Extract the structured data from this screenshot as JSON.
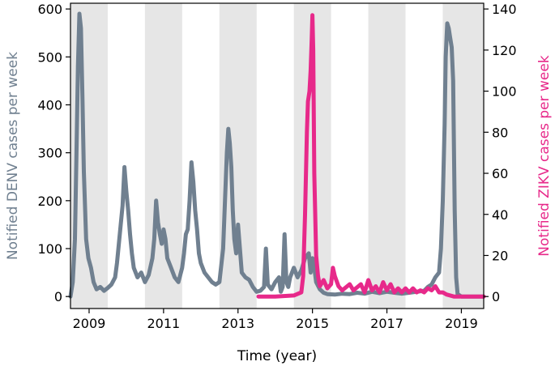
{
  "chart_data": {
    "type": "line",
    "xlabel": "Time (year)",
    "xlim": [
      2008.5,
      2019.6
    ],
    "x_ticks": [
      2009,
      2011,
      2013,
      2015,
      2017,
      2019
    ],
    "x_tick_labels": [
      "2009",
      "2011",
      "2013",
      "2015",
      "2017",
      "2019"
    ],
    "y_left": {
      "label": "Notified DENV cases per week",
      "lim": [
        -25,
        612
      ],
      "ticks": [
        0,
        100,
        200,
        300,
        400,
        500,
        600
      ],
      "tick_labels": [
        "0",
        "100",
        "200",
        "300",
        "400",
        "500",
        "600"
      ],
      "color": "#708090"
    },
    "y_right": {
      "label": "Notified ZIKV cases per week",
      "lim": [
        -5.83,
        142.8
      ],
      "ticks": [
        0,
        20,
        40,
        60,
        80,
        100,
        120,
        140
      ],
      "tick_labels": [
        "0",
        "20",
        "40",
        "60",
        "80",
        "100",
        "120",
        "140"
      ],
      "color": "#e7298a"
    },
    "shaded_bands": [
      [
        2008.5,
        2009.5
      ],
      [
        2010.5,
        2011.5
      ],
      [
        2012.5,
        2013.5
      ],
      [
        2014.5,
        2015.5
      ],
      [
        2016.5,
        2017.5
      ],
      [
        2018.5,
        2019.6
      ]
    ],
    "band_color": "#e6e6e6",
    "grid": false,
    "legend": "none",
    "series": [
      {
        "axis": "left",
        "color": "#708090",
        "points": [
          [
            2008.5,
            0
          ],
          [
            2008.56,
            30
          ],
          [
            2008.62,
            120
          ],
          [
            2008.66,
            300
          ],
          [
            2008.7,
            480
          ],
          [
            2008.74,
            590
          ],
          [
            2008.78,
            560
          ],
          [
            2008.82,
            420
          ],
          [
            2008.86,
            260
          ],
          [
            2008.92,
            120
          ],
          [
            2008.98,
            80
          ],
          [
            2009.05,
            60
          ],
          [
            2009.12,
            30
          ],
          [
            2009.2,
            15
          ],
          [
            2009.3,
            20
          ],
          [
            2009.4,
            12
          ],
          [
            2009.5,
            18
          ],
          [
            2009.6,
            25
          ],
          [
            2009.7,
            40
          ],
          [
            2009.75,
            70
          ],
          [
            2009.8,
            110
          ],
          [
            2009.85,
            150
          ],
          [
            2009.9,
            190
          ],
          [
            2009.95,
            270
          ],
          [
            2010.0,
            220
          ],
          [
            2010.05,
            180
          ],
          [
            2010.1,
            130
          ],
          [
            2010.15,
            90
          ],
          [
            2010.2,
            60
          ],
          [
            2010.3,
            40
          ],
          [
            2010.4,
            50
          ],
          [
            2010.5,
            30
          ],
          [
            2010.6,
            45
          ],
          [
            2010.7,
            80
          ],
          [
            2010.75,
            120
          ],
          [
            2010.8,
            200
          ],
          [
            2010.85,
            155
          ],
          [
            2010.9,
            130
          ],
          [
            2010.95,
            110
          ],
          [
            2011.0,
            140
          ],
          [
            2011.05,
            120
          ],
          [
            2011.1,
            80
          ],
          [
            2011.2,
            60
          ],
          [
            2011.3,
            40
          ],
          [
            2011.4,
            30
          ],
          [
            2011.5,
            60
          ],
          [
            2011.55,
            90
          ],
          [
            2011.6,
            130
          ],
          [
            2011.65,
            140
          ],
          [
            2011.7,
            200
          ],
          [
            2011.75,
            280
          ],
          [
            2011.8,
            240
          ],
          [
            2011.85,
            180
          ],
          [
            2011.9,
            140
          ],
          [
            2011.95,
            90
          ],
          [
            2012.0,
            70
          ],
          [
            2012.1,
            50
          ],
          [
            2012.2,
            40
          ],
          [
            2012.3,
            30
          ],
          [
            2012.4,
            25
          ],
          [
            2012.5,
            30
          ],
          [
            2012.6,
            100
          ],
          [
            2012.65,
            200
          ],
          [
            2012.7,
            300
          ],
          [
            2012.74,
            350
          ],
          [
            2012.78,
            320
          ],
          [
            2012.82,
            270
          ],
          [
            2012.86,
            180
          ],
          [
            2012.9,
            120
          ],
          [
            2012.95,
            90
          ],
          [
            2013.0,
            150
          ],
          [
            2013.05,
            100
          ],
          [
            2013.1,
            50
          ],
          [
            2013.2,
            40
          ],
          [
            2013.3,
            35
          ],
          [
            2013.4,
            20
          ],
          [
            2013.5,
            10
          ],
          [
            2013.6,
            12
          ],
          [
            2013.7,
            20
          ],
          [
            2013.75,
            100
          ],
          [
            2013.8,
            25
          ],
          [
            2013.9,
            15
          ],
          [
            2014.0,
            30
          ],
          [
            2014.1,
            40
          ],
          [
            2014.15,
            10
          ],
          [
            2014.2,
            20
          ],
          [
            2014.25,
            130
          ],
          [
            2014.3,
            30
          ],
          [
            2014.35,
            20
          ],
          [
            2014.4,
            40
          ],
          [
            2014.5,
            60
          ],
          [
            2014.6,
            40
          ],
          [
            2014.7,
            55
          ],
          [
            2014.8,
            80
          ],
          [
            2014.9,
            90
          ],
          [
            2014.95,
            50
          ],
          [
            2015.0,
            80
          ],
          [
            2015.05,
            60
          ],
          [
            2015.1,
            30
          ],
          [
            2015.2,
            15
          ],
          [
            2015.3,
            8
          ],
          [
            2015.4,
            5
          ],
          [
            2015.6,
            4
          ],
          [
            2015.8,
            6
          ],
          [
            2016.0,
            5
          ],
          [
            2016.2,
            8
          ],
          [
            2016.4,
            6
          ],
          [
            2016.6,
            10
          ],
          [
            2016.8,
            7
          ],
          [
            2017.0,
            10
          ],
          [
            2017.2,
            8
          ],
          [
            2017.4,
            6
          ],
          [
            2017.6,
            8
          ],
          [
            2017.8,
            10
          ],
          [
            2018.0,
            12
          ],
          [
            2018.1,
            20
          ],
          [
            2018.2,
            25
          ],
          [
            2018.3,
            40
          ],
          [
            2018.4,
            50
          ],
          [
            2018.45,
            100
          ],
          [
            2018.5,
            200
          ],
          [
            2018.55,
            360
          ],
          [
            2018.58,
            500
          ],
          [
            2018.62,
            570
          ],
          [
            2018.66,
            560
          ],
          [
            2018.7,
            540
          ],
          [
            2018.74,
            520
          ],
          [
            2018.78,
            450
          ],
          [
            2018.82,
            180
          ],
          [
            2018.86,
            40
          ],
          [
            2018.9,
            5
          ],
          [
            2019.0,
            0
          ],
          [
            2019.6,
            0
          ]
        ]
      },
      {
        "axis": "right",
        "color": "#e7298a",
        "points": [
          [
            2013.55,
            0
          ],
          [
            2014.0,
            0
          ],
          [
            2014.5,
            0.5
          ],
          [
            2014.7,
            2
          ],
          [
            2014.75,
            10
          ],
          [
            2014.8,
            40
          ],
          [
            2014.85,
            80
          ],
          [
            2014.88,
            95
          ],
          [
            2014.92,
            100
          ],
          [
            2014.95,
            110
          ],
          [
            2014.98,
            125
          ],
          [
            2015.0,
            137
          ],
          [
            2015.02,
            120
          ],
          [
            2015.05,
            60
          ],
          [
            2015.1,
            20
          ],
          [
            2015.15,
            10
          ],
          [
            2015.2,
            5
          ],
          [
            2015.3,
            8
          ],
          [
            2015.4,
            4
          ],
          [
            2015.5,
            6
          ],
          [
            2015.55,
            14
          ],
          [
            2015.6,
            10
          ],
          [
            2015.7,
            5
          ],
          [
            2015.8,
            3
          ],
          [
            2016.0,
            6
          ],
          [
            2016.1,
            3
          ],
          [
            2016.3,
            6
          ],
          [
            2016.4,
            2
          ],
          [
            2016.5,
            8
          ],
          [
            2016.6,
            3
          ],
          [
            2016.7,
            5
          ],
          [
            2016.8,
            2
          ],
          [
            2016.9,
            7
          ],
          [
            2017.0,
            3
          ],
          [
            2017.1,
            6
          ],
          [
            2017.2,
            2
          ],
          [
            2017.3,
            4
          ],
          [
            2017.4,
            2
          ],
          [
            2017.5,
            4
          ],
          [
            2017.6,
            2
          ],
          [
            2017.7,
            4
          ],
          [
            2017.8,
            2
          ],
          [
            2017.9,
            3
          ],
          [
            2018.0,
            2
          ],
          [
            2018.1,
            4
          ],
          [
            2018.2,
            3
          ],
          [
            2018.3,
            5
          ],
          [
            2018.4,
            2
          ],
          [
            2018.5,
            2
          ],
          [
            2018.6,
            1
          ],
          [
            2018.8,
            0
          ],
          [
            2019.6,
            0
          ]
        ]
      }
    ]
  }
}
